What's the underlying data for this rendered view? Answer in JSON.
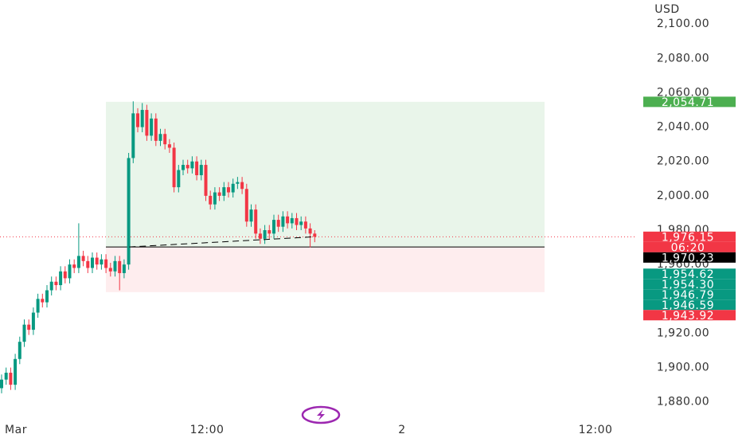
{
  "chart_data": {
    "type": "candlestick",
    "currency": "USD",
    "ylim": [
      1859,
      2114
    ],
    "yticks": [
      {
        "value": 1880,
        "label": "1,880.00"
      },
      {
        "value": 1900,
        "label": "1,900.00"
      },
      {
        "value": 1920,
        "label": "1,920.00"
      },
      {
        "value": 1960,
        "label": "1,960.00"
      },
      {
        "value": 1980,
        "label": "1,980.00"
      },
      {
        "value": 2000,
        "label": "2,000.00"
      },
      {
        "value": 2020,
        "label": "2,020.00"
      },
      {
        "value": 2040,
        "label": "2,040.00"
      },
      {
        "value": 2060,
        "label": "2,060.00"
      },
      {
        "value": 2080,
        "label": "2,080.00"
      },
      {
        "value": 2100,
        "label": "2,100.00"
      }
    ],
    "x_labels": [
      "Mar",
      "12:00",
      "2",
      "12:00"
    ],
    "up_color": "#089981",
    "down_color": "#f23645",
    "ohlc": [
      [
        1888,
        1896,
        1885,
        1893
      ],
      [
        1893,
        1900,
        1890,
        1897
      ],
      [
        1897,
        1900,
        1887,
        1890
      ],
      [
        1890,
        1908,
        1887,
        1905
      ],
      [
        1905,
        1918,
        1902,
        1915
      ],
      [
        1915,
        1928,
        1912,
        1925
      ],
      [
        1925,
        1928,
        1919,
        1922
      ],
      [
        1922,
        1935,
        1919,
        1932
      ],
      [
        1932,
        1943,
        1929,
        1940
      ],
      [
        1940,
        1943,
        1935,
        1938
      ],
      [
        1938,
        1948,
        1935,
        1945
      ],
      [
        1945,
        1953,
        1942,
        1950
      ],
      [
        1950,
        1953,
        1945,
        1948
      ],
      [
        1948,
        1959,
        1945,
        1956
      ],
      [
        1956,
        1959,
        1949,
        1952
      ],
      [
        1952,
        1963,
        1949,
        1960
      ],
      [
        1960,
        1963,
        1955,
        1958
      ],
      [
        1958,
        1984,
        1955,
        1965
      ],
      [
        1965,
        1968,
        1959,
        1962
      ],
      [
        1962,
        1965,
        1955,
        1958
      ],
      [
        1958,
        1967,
        1955,
        1964
      ],
      [
        1964,
        1967,
        1957,
        1960
      ],
      [
        1960,
        1966,
        1957,
        1963
      ],
      [
        1963,
        1966,
        1955,
        1958
      ],
      [
        1958,
        1961,
        1953,
        1956
      ],
      [
        1956,
        1965,
        1953,
        1962
      ],
      [
        1962,
        1965,
        1945,
        1955
      ],
      [
        1955,
        1963,
        1952,
        1960
      ],
      [
        1960,
        2025,
        1957,
        2022
      ],
      [
        2022,
        2055,
        2019,
        2048
      ],
      [
        2048,
        2051,
        2037,
        2040
      ],
      [
        2040,
        2054,
        2037,
        2050
      ],
      [
        2050,
        2053,
        2032,
        2035
      ],
      [
        2035,
        2048,
        2032,
        2045
      ],
      [
        2045,
        2048,
        2029,
        2032
      ],
      [
        2032,
        2039,
        2029,
        2036
      ],
      [
        2036,
        2039,
        2027,
        2030
      ],
      [
        2030,
        2033,
        2025,
        2028
      ],
      [
        2028,
        2031,
        2002,
        2005
      ],
      [
        2005,
        2018,
        2002,
        2015
      ],
      [
        2015,
        2021,
        2012,
        2018
      ],
      [
        2018,
        2021,
        2013,
        2016
      ],
      [
        2016,
        2023,
        2013,
        2020
      ],
      [
        2020,
        2023,
        2009,
        2012
      ],
      [
        2012,
        2021,
        2009,
        2018
      ],
      [
        2018,
        2021,
        1997,
        2000
      ],
      [
        2000,
        2003,
        1992,
        1995
      ],
      [
        1995,
        2005,
        1992,
        2002
      ],
      [
        2002,
        2005,
        1997,
        2000
      ],
      [
        2000,
        2008,
        1997,
        2005
      ],
      [
        2005,
        2008,
        1999,
        2002
      ],
      [
        2002,
        2010,
        1999,
        2007
      ],
      [
        2007,
        2011,
        2004,
        2008
      ],
      [
        2008,
        2011,
        2001,
        2004
      ],
      [
        2004,
        2007,
        1982,
        1985
      ],
      [
        1985,
        1995,
        1982,
        1992
      ],
      [
        1992,
        1995,
        1975,
        1978
      ],
      [
        1978,
        1981,
        1972,
        1975
      ],
      [
        1975,
        1983,
        1972,
        1980
      ],
      [
        1980,
        1983,
        1975,
        1978
      ],
      [
        1978,
        1989,
        1975,
        1986
      ],
      [
        1986,
        1989,
        1979,
        1982
      ],
      [
        1982,
        1991,
        1979,
        1988
      ],
      [
        1988,
        1991,
        1981,
        1984
      ],
      [
        1984,
        1990,
        1981,
        1987
      ],
      [
        1987,
        1990,
        1980,
        1983
      ],
      [
        1983,
        1988,
        1980,
        1985
      ],
      [
        1985,
        1988,
        1978,
        1981
      ],
      [
        1981,
        1984,
        1970,
        1978
      ],
      [
        1978,
        1980,
        1973,
        1976.15
      ]
    ],
    "price_labels": [
      {
        "value": 2054.71,
        "label": "2,054.71",
        "color": "#4caf50"
      },
      {
        "value": 1976.15,
        "label": "1,976.15",
        "color": "#f23645"
      },
      {
        "value": 1970.23,
        "label": "1,970.23",
        "color": "#000000"
      },
      {
        "value": 1954.62,
        "label": "1,954.62",
        "color": "#089981"
      },
      {
        "value": 1954.3,
        "label": "1,954.30",
        "color": "#089981"
      },
      {
        "value": 1946.79,
        "label": "1,946.79",
        "color": "#089981"
      },
      {
        "value": 1946.59,
        "label": "1,946.59",
        "color": "#089981"
      },
      {
        "value": 1943.92,
        "label": "1,943.92",
        "color": "#f23645"
      }
    ],
    "countdown": "06:20"
  }
}
